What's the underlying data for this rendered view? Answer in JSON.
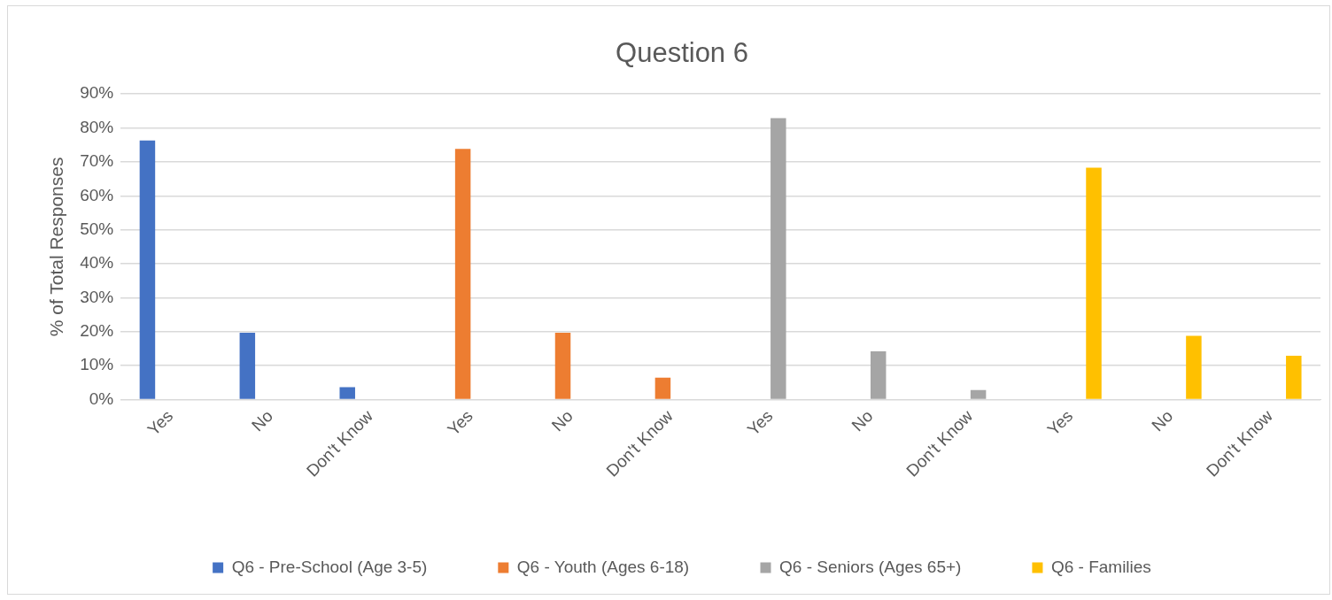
{
  "chart_data": {
    "type": "bar",
    "title": "Question 6",
    "ylabel": "% of Total Responses",
    "categories": [
      "Yes",
      "No",
      "Don't Know",
      "Yes",
      "No",
      "Don't Know",
      "Yes",
      "No",
      "Don't Know",
      "Yes",
      "No",
      "Don't Know"
    ],
    "series": [
      {
        "name": "Q6 - Pre-School (Age 3-5)",
        "color": "#4472c4",
        "values": [
          76.3,
          19.7,
          3.7,
          null,
          null,
          null,
          null,
          null,
          null,
          null,
          null,
          null
        ]
      },
      {
        "name": "Q6 - Youth (Ages 6-18)",
        "color": "#ed7d31",
        "values": [
          null,
          null,
          null,
          73.8,
          19.7,
          6.5,
          null,
          null,
          null,
          null,
          null,
          null
        ]
      },
      {
        "name": "Q6 - Seniors (Ages 65+)",
        "color": "#a5a5a5",
        "values": [
          null,
          null,
          null,
          null,
          null,
          null,
          82.9,
          14.2,
          2.8,
          null,
          null,
          null
        ]
      },
      {
        "name": "Q6 - Families",
        "color": "#ffc000",
        "values": [
          null,
          null,
          null,
          null,
          null,
          null,
          null,
          null,
          null,
          68.3,
          18.8,
          12.9
        ]
      }
    ],
    "ylim": [
      0,
      90
    ],
    "yticks": [
      {
        "value": 0,
        "label": "0%"
      },
      {
        "value": 10,
        "label": "10%"
      },
      {
        "value": 20,
        "label": "20%"
      },
      {
        "value": 30,
        "label": "30%"
      },
      {
        "value": 40,
        "label": "40%"
      },
      {
        "value": 50,
        "label": "50%"
      },
      {
        "value": 60,
        "label": "60%"
      },
      {
        "value": 70,
        "label": "70%"
      },
      {
        "value": 80,
        "label": "80%"
      },
      {
        "value": 90,
        "label": "90%"
      }
    ],
    "grid": "y",
    "legend": "bottom"
  }
}
